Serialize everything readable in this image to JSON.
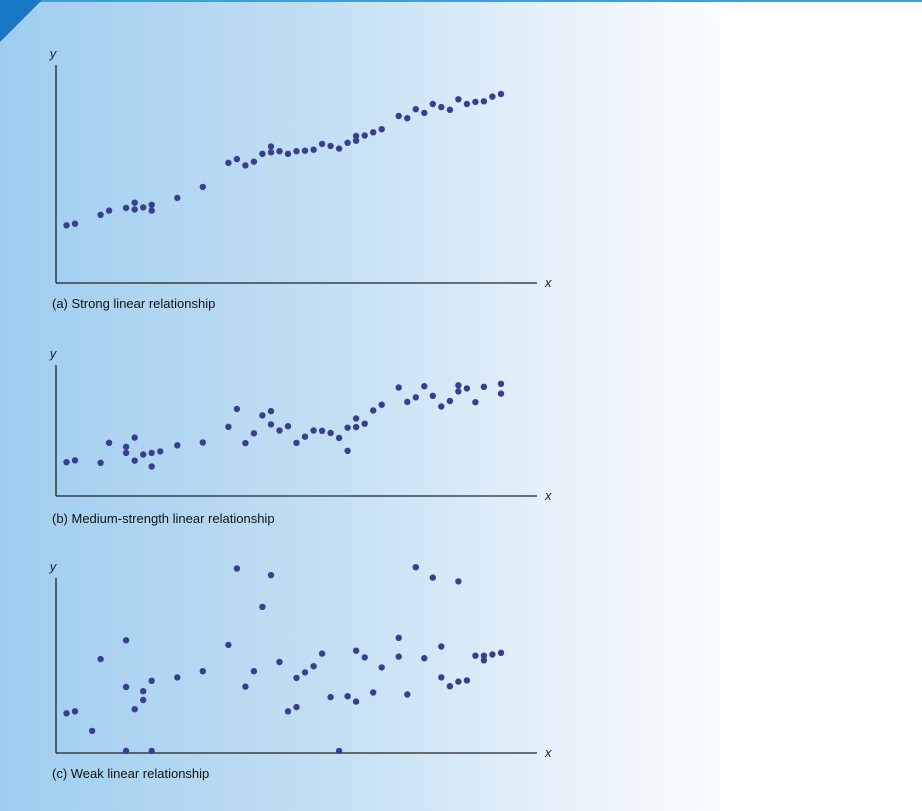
{
  "colors": {
    "point": "#3b3d8f",
    "axis": "#222222"
  },
  "chart_data": [
    {
      "type": "scatter",
      "title": "",
      "caption": "(a) Strong linear relationship",
      "xlabel": "x",
      "ylabel": "y",
      "grid": false,
      "points": [
        [
          1,
          11
        ],
        [
          2,
          11.3
        ],
        [
          5,
          13
        ],
        [
          6,
          13.8
        ],
        [
          8,
          14.3
        ],
        [
          9,
          14
        ],
        [
          9,
          15.3
        ],
        [
          10,
          14.4
        ],
        [
          11,
          14.9
        ],
        [
          11,
          13.8
        ],
        [
          14,
          16.2
        ],
        [
          17,
          18.3
        ],
        [
          20,
          22.9
        ],
        [
          21,
          23.6
        ],
        [
          22,
          22.4
        ],
        [
          23,
          23.1
        ],
        [
          24,
          24.6
        ],
        [
          25,
          24.9
        ],
        [
          25,
          26
        ],
        [
          26,
          25.1
        ],
        [
          27,
          24.6
        ],
        [
          28,
          25.1
        ],
        [
          29,
          25.2
        ],
        [
          30,
          25.4
        ],
        [
          31,
          26.5
        ],
        [
          32,
          26.1
        ],
        [
          33,
          25.6
        ],
        [
          34,
          26.7
        ],
        [
          35,
          27.1
        ],
        [
          35,
          28
        ],
        [
          36,
          28.1
        ],
        [
          37,
          28.7
        ],
        [
          38,
          29.3
        ],
        [
          40,
          31.8
        ],
        [
          41,
          31.4
        ],
        [
          42,
          33.1
        ],
        [
          43,
          32.4
        ],
        [
          44,
          34.1
        ],
        [
          45,
          33.5
        ],
        [
          46,
          33
        ],
        [
          47,
          35
        ],
        [
          48,
          34.1
        ],
        [
          49,
          34.5
        ],
        [
          50,
          34.6
        ],
        [
          51,
          35.5
        ],
        [
          52,
          36
        ]
      ]
    },
    {
      "type": "scatter",
      "title": "",
      "caption": "(b) Medium-strength linear relationship",
      "xlabel": "x",
      "ylabel": "y",
      "grid": false,
      "points": [
        [
          1,
          11
        ],
        [
          2,
          11.6
        ],
        [
          5,
          10.8
        ],
        [
          6,
          17.3
        ],
        [
          8,
          16
        ],
        [
          8,
          14
        ],
        [
          9,
          11.5
        ],
        [
          9,
          19
        ],
        [
          10,
          13.5
        ],
        [
          11,
          14
        ],
        [
          11,
          9.6
        ],
        [
          12,
          14.5
        ],
        [
          14,
          16.5
        ],
        [
          17,
          17.4
        ],
        [
          20,
          22.5
        ],
        [
          21,
          28.3
        ],
        [
          22,
          17.2
        ],
        [
          23,
          20.4
        ],
        [
          24,
          26.2
        ],
        [
          25,
          27.6
        ],
        [
          25,
          23.3
        ],
        [
          26,
          21.3
        ],
        [
          27,
          22.7
        ],
        [
          28,
          17.3
        ],
        [
          29,
          19.3
        ],
        [
          30,
          21.3
        ],
        [
          31,
          21.2
        ],
        [
          32,
          20.5
        ],
        [
          33,
          18.9
        ],
        [
          34,
          14.7
        ],
        [
          34,
          22.2
        ],
        [
          35,
          25.2
        ],
        [
          35,
          22.4
        ],
        [
          36,
          23.5
        ],
        [
          37,
          27.8
        ],
        [
          38,
          29.7
        ],
        [
          40,
          35.3
        ],
        [
          41,
          30.6
        ],
        [
          42,
          32.1
        ],
        [
          43,
          35.7
        ],
        [
          44,
          32.6
        ],
        [
          45,
          29.1
        ],
        [
          46,
          30.9
        ],
        [
          47,
          36
        ],
        [
          47,
          34
        ],
        [
          48,
          35
        ],
        [
          49,
          30.5
        ],
        [
          50,
          35.5
        ],
        [
          52,
          33.3
        ],
        [
          52,
          36.5
        ]
      ]
    },
    {
      "type": "scatter",
      "title": "",
      "caption": "(c) Weak linear relationship",
      "xlabel": "x",
      "ylabel": "y",
      "grid": false,
      "points": [
        [
          1,
          9.5
        ],
        [
          2,
          10
        ],
        [
          4,
          5.3
        ],
        [
          5,
          22.5
        ],
        [
          8,
          15.8
        ],
        [
          8,
          27
        ],
        [
          8,
          0.5
        ],
        [
          9,
          10.5
        ],
        [
          10,
          12.7
        ],
        [
          10,
          14.8
        ],
        [
          11,
          17.3
        ],
        [
          11,
          0.5
        ],
        [
          14,
          18.1
        ],
        [
          17,
          19.6
        ],
        [
          20,
          25.9
        ],
        [
          21,
          44.2
        ],
        [
          22,
          15.9
        ],
        [
          23,
          19.6
        ],
        [
          24,
          35
        ],
        [
          25,
          42.6
        ],
        [
          26,
          21.8
        ],
        [
          27,
          10
        ],
        [
          28,
          18
        ],
        [
          28,
          11
        ],
        [
          29,
          19.3
        ],
        [
          30,
          20.8
        ],
        [
          31,
          23.8
        ],
        [
          32,
          13.4
        ],
        [
          33,
          0.5
        ],
        [
          34,
          13.6
        ],
        [
          35,
          24.5
        ],
        [
          35,
          12.3
        ],
        [
          36,
          22.9
        ],
        [
          37,
          14.5
        ],
        [
          38,
          20.5
        ],
        [
          40,
          23.1
        ],
        [
          40,
          27.6
        ],
        [
          41,
          14
        ],
        [
          42,
          44.5
        ],
        [
          43,
          22.7
        ],
        [
          44,
          42
        ],
        [
          45,
          25.5
        ],
        [
          45,
          18.1
        ],
        [
          46,
          16
        ],
        [
          47,
          41.1
        ],
        [
          47,
          17.1
        ],
        [
          48,
          17.4
        ],
        [
          49,
          23.3
        ],
        [
          50,
          23.3
        ],
        [
          50,
          22.2
        ],
        [
          51,
          23.6
        ],
        [
          52,
          24
        ]
      ]
    }
  ]
}
